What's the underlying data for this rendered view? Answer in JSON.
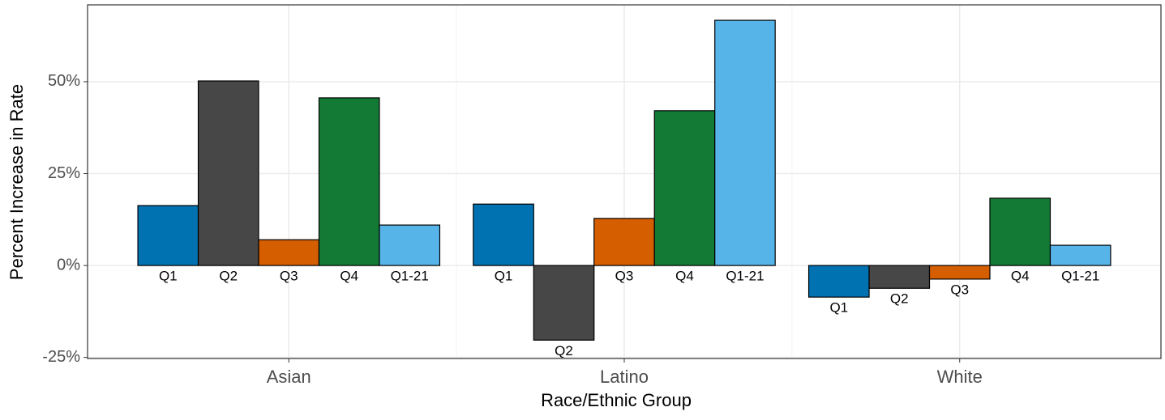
{
  "chart_data": {
    "type": "bar",
    "x_label": "Race/Ethnic Group",
    "y_label": "Percent Increase in Rate",
    "categories": [
      "Asian",
      "Latino",
      "White"
    ],
    "series": [
      {
        "name": "Q1",
        "color": "#0072b2",
        "values": [
          16.3,
          16.7,
          -8.6
        ]
      },
      {
        "name": "Q2",
        "color": "#474747",
        "values": [
          50.2,
          -20.3,
          -6.2
        ]
      },
      {
        "name": "Q3",
        "color": "#d55e00",
        "values": [
          7.0,
          12.8,
          -3.7
        ]
      },
      {
        "name": "Q4",
        "color": "#137a35",
        "values": [
          45.6,
          42.1,
          18.3
        ]
      },
      {
        "name": "Q1-21",
        "color": "#56b4e9",
        "values": [
          11.0,
          66.7,
          5.5
        ]
      }
    ],
    "ylim": [
      -25.3,
      70.9
    ],
    "yticks": [
      {
        "value": -25,
        "label": "-25%"
      },
      {
        "value": 0,
        "label": "0%"
      },
      {
        "value": 25,
        "label": "25%"
      },
      {
        "value": 50,
        "label": "50%"
      }
    ],
    "grid": true
  }
}
